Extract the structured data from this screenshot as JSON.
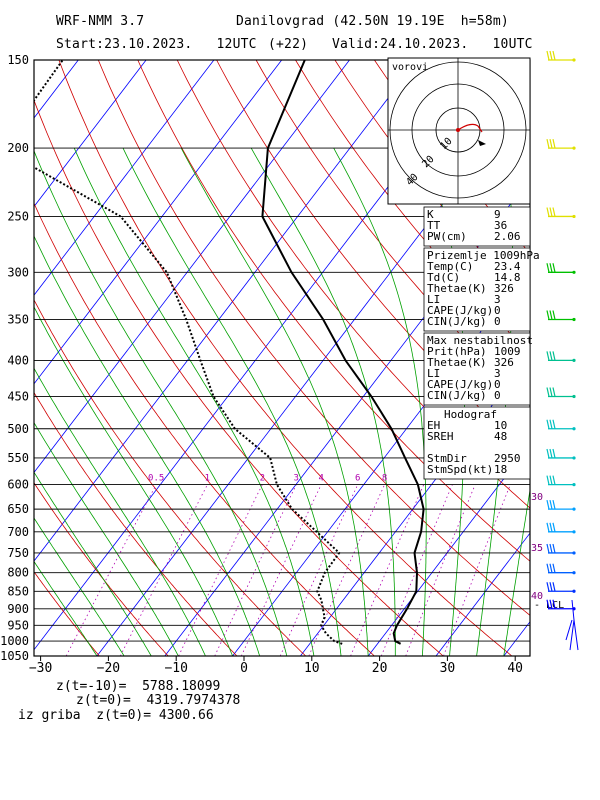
{
  "header": {
    "model": "WRF-NMM 3.7",
    "station": "Danilovgrad (42.50N 19.19E  h=58m)",
    "start": "Start:23.10.2023.   12UTC",
    "lead": "(+22)",
    "valid": "Valid:24.10.2023.   10UTC"
  },
  "footer": {
    "line1": "z(t=-10)=  5788.18099",
    "line2": "z(t=0)=  4319.7974378",
    "line3": "iz griba  z(t=0)= 4300.66"
  },
  "hodograph_title": "vorovi",
  "hodograph_rings": [
    "10",
    "20",
    "40"
  ],
  "colors": {
    "temperature": "#000000",
    "dewpoint": "#000000",
    "dry_adiabat": "#d00000",
    "moist_adiabat": "#00a000",
    "isotherm": "#0000ff",
    "mixing_ratio": "#b000b0",
    "wind_barb": [
      "#e0e000",
      "#e0e000",
      "#e0e000",
      "#00c000",
      "#00c000",
      "#00c090",
      "#00c090",
      "#00c0c0",
      "#00c0c0",
      "#00c0c0",
      "#00a0ff",
      "#00a0ff",
      "#0060ff",
      "#0060ff",
      "#0030ff",
      "#0000ff"
    ]
  },
  "info_boxes": [
    {
      "title": "",
      "rows": [
        [
          "K",
          "9"
        ],
        [
          "TT",
          "36"
        ],
        [
          "PW(cm)",
          "2.06"
        ]
      ]
    },
    {
      "title": "Prizemlje 1009hPa",
      "rows": [
        [
          "Temp(C)",
          "23.4"
        ],
        [
          "Td(C)",
          "14.8"
        ],
        [
          "Thetae(K)",
          "326"
        ],
        [
          "LI",
          "3"
        ],
        [
          "CAPE(J/kg)",
          "0"
        ],
        [
          "CIN(J/kg)",
          "0"
        ]
      ]
    },
    {
      "title": "Max nestabilnost",
      "rows": [
        [
          "Prit(hPa)",
          "1009"
        ],
        [
          "Thetae(K)",
          "326"
        ],
        [
          "LI",
          "3"
        ],
        [
          "CAPE(J/kg)",
          "0"
        ],
        [
          "CIN(J/kg)",
          "0"
        ]
      ]
    },
    {
      "title": "Hodograf",
      "rows": [
        [
          "EH",
          "10"
        ],
        [
          "SREH",
          "48"
        ],
        [
          "",
          ""
        ],
        [
          "StmDir",
          "2950"
        ],
        [
          "StmSpd(kt)",
          "18"
        ]
      ]
    }
  ],
  "side_labels": [
    "30",
    "35",
    "40",
    "LCL"
  ],
  "chart_data": {
    "type": "line",
    "title": "",
    "xlabel": "",
    "ylabel": "",
    "pressure_levels": [
      150,
      200,
      250,
      300,
      350,
      400,
      450,
      500,
      550,
      600,
      650,
      700,
      750,
      800,
      850,
      900,
      950,
      1000,
      1050
    ],
    "x_ticks": [
      -30,
      -20,
      -10,
      0,
      10,
      20,
      30,
      40
    ],
    "xlim": [
      -30,
      42
    ],
    "ylim": [
      1050,
      150
    ],
    "mixing_ratio_labels": [
      "0.5",
      "1",
      "2",
      "3",
      "4",
      "6",
      "8"
    ],
    "series": [
      {
        "kind": "temperature",
        "p": [
          1009,
          1000,
          975,
          950,
          925,
          900,
          875,
          850,
          800,
          750,
          700,
          650,
          600,
          550,
          500,
          450,
          400,
          350,
          300,
          250,
          200,
          150
        ],
        "t": [
          23.4,
          22.3,
          21.2,
          20.8,
          20.6,
          20.4,
          20.1,
          19.8,
          17.8,
          15.2,
          13.8,
          11.6,
          8.0,
          3.1,
          -2.2,
          -8.8,
          -16.7,
          -24.6,
          -34.6,
          -45.2,
          -52.1,
          -56.6
        ]
      },
      {
        "kind": "dewpoint",
        "p": [
          1009,
          1000,
          975,
          950,
          925,
          900,
          875,
          850,
          800,
          750,
          700,
          650,
          600,
          550,
          500,
          450,
          400,
          350,
          300,
          250,
          200,
          150
        ],
        "td": [
          14.8,
          13.3,
          11.2,
          9.6,
          9.2,
          8.0,
          6.8,
          5.2,
          4.2,
          4.1,
          -1.6,
          -7.8,
          -12.8,
          -16.8,
          -25.3,
          -32.1,
          -38.1,
          -44.8,
          -53.0,
          -66.1,
          -91.6,
          -92.3
        ]
      }
    ]
  }
}
